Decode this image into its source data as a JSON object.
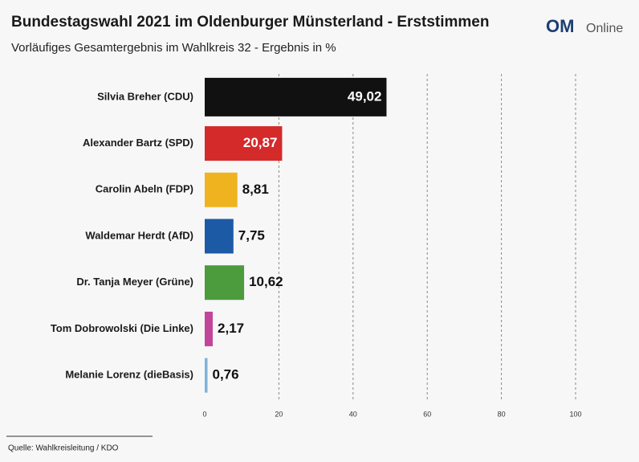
{
  "logo": {
    "mark": "OM",
    "text": "Online"
  },
  "chart_data": {
    "type": "hbar",
    "title": "Bundestagswahl 2021 im Oldenburger Münsterland - Erststimmen",
    "subtitle": "Vorläufiges Gesamtergebnis im Wahlkreis 32 - Ergebnis in %",
    "source": "Quelle: Wahlkreisleitung / KDO",
    "categories": [
      "Silvia Breher (CDU)",
      "Alexander Bartz (SPD)",
      "Carolin Abeln (FDP)",
      "Waldemar Herdt (AfD)",
      "Dr. Tanja Meyer (Grüne)",
      "Tom Dobrowolski (Die Linke)",
      "Melanie Lorenz (dieBasis)"
    ],
    "values": [
      49.02,
      20.87,
      8.81,
      7.75,
      10.62,
      2.17,
      0.76
    ],
    "value_labels": [
      "49,02",
      "20,87",
      "8,81",
      "7,75",
      "10,62",
      "2,17",
      "0,76"
    ],
    "colors": [
      "#111111",
      "#d42a2a",
      "#efb320",
      "#1d5aa6",
      "#4c9b3c",
      "#c2459a",
      "#7fb3db"
    ],
    "xlim": [
      0,
      100
    ],
    "xticks": [
      0,
      20,
      40,
      60,
      80,
      100
    ],
    "grid": true
  }
}
